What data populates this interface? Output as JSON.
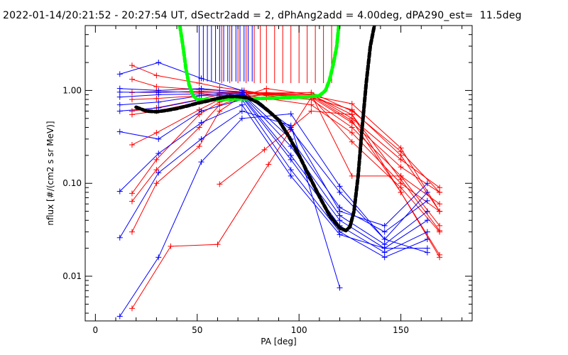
{
  "chart_data": {
    "type": "line",
    "title": "2022-01-14/20:21:52 - 20:27:54 UT, dSectr2add = 2, dPhAng2add = 4.00deg, dPA290_est=  11.5deg",
    "xlabel": "PA [deg]",
    "ylabel": "nflux [#/(cm2 s sr MeV)]",
    "xlim": [
      -5,
      185
    ],
    "ylim": [
      0.0033,
      5.0
    ],
    "yscale": "log",
    "xticks": [
      {
        "v": 0,
        "label": "0"
      },
      {
        "v": 50,
        "label": "50"
      },
      {
        "v": 100,
        "label": "100"
      },
      {
        "v": 150,
        "label": "150"
      }
    ],
    "yticks": [
      {
        "v": 0.01,
        "label": "0.01"
      },
      {
        "v": 0.1,
        "label": "0.10"
      },
      {
        "v": 1.0,
        "label": "1.00"
      }
    ],
    "colors": {
      "red": "#ff0000",
      "blue": "#0000ff",
      "green": "#00ff00",
      "black": "#000000"
    },
    "red_series": [
      [
        [
          18,
          1.86
        ],
        [
          30,
          1.45
        ],
        [
          51,
          1.2
        ],
        [
          61,
          1.08
        ],
        [
          73,
          1.0
        ],
        [
          84,
          0.91
        ],
        [
          106,
          0.88
        ],
        [
          126,
          0.72
        ],
        [
          150,
          0.24
        ],
        [
          169,
          0.05
        ]
      ],
      [
        [
          18,
          1.32
        ],
        [
          30,
          1.1
        ],
        [
          51,
          1.02
        ],
        [
          61,
          1.0
        ],
        [
          73,
          0.97
        ],
        [
          84,
          0.94
        ],
        [
          106,
          0.95
        ],
        [
          126,
          0.6
        ],
        [
          150,
          0.22
        ],
        [
          169,
          0.08
        ]
      ],
      [
        [
          18,
          0.95
        ],
        [
          30,
          0.98
        ],
        [
          51,
          0.95
        ],
        [
          61,
          0.96
        ],
        [
          73,
          0.95
        ],
        [
          84,
          0.93
        ],
        [
          106,
          0.91
        ],
        [
          126,
          0.5
        ],
        [
          150,
          0.18
        ],
        [
          169,
          0.09
        ]
      ],
      [
        [
          18,
          0.8
        ],
        [
          30,
          0.82
        ],
        [
          51,
          0.88
        ],
        [
          61,
          0.93
        ],
        [
          73,
          0.94
        ],
        [
          84,
          0.9
        ],
        [
          106,
          0.85
        ],
        [
          126,
          0.45
        ],
        [
          150,
          0.15
        ],
        [
          169,
          0.08
        ]
      ],
      [
        [
          18,
          0.6
        ],
        [
          30,
          0.65
        ],
        [
          51,
          0.8
        ],
        [
          61,
          0.9
        ],
        [
          73,
          0.95
        ],
        [
          84,
          0.88
        ],
        [
          106,
          0.8
        ],
        [
          126,
          0.4
        ],
        [
          150,
          0.12
        ],
        [
          169,
          0.06
        ]
      ],
      [
        [
          18,
          0.55
        ],
        [
          30,
          0.6
        ],
        [
          51,
          0.75
        ],
        [
          61,
          0.85
        ],
        [
          73,
          0.9
        ],
        [
          84,
          0.82
        ],
        [
          106,
          0.7
        ],
        [
          126,
          0.35
        ],
        [
          150,
          0.1
        ],
        [
          169,
          0.05
        ]
      ],
      [
        [
          18,
          0.26
        ],
        [
          30,
          0.35
        ],
        [
          51,
          0.62
        ],
        [
          61,
          0.8
        ],
        [
          73,
          0.88
        ],
        [
          84,
          1.05
        ],
        [
          106,
          0.9
        ],
        [
          126,
          0.12
        ],
        [
          150,
          0.12
        ],
        [
          169,
          0.035
        ]
      ],
      [
        [
          18,
          0.078
        ],
        [
          30,
          0.18
        ],
        [
          51,
          0.55
        ],
        [
          61,
          0.75
        ],
        [
          73,
          0.86
        ],
        [
          84,
          0.9
        ],
        [
          106,
          0.85
        ],
        [
          126,
          0.28
        ],
        [
          150,
          0.09
        ],
        [
          169,
          0.03
        ]
      ],
      [
        [
          18,
          0.064
        ],
        [
          30,
          0.14
        ],
        [
          51,
          0.4
        ],
        [
          61,
          0.7
        ],
        [
          73,
          0.85
        ],
        [
          84,
          0.92
        ],
        [
          106,
          0.88
        ],
        [
          126,
          0.47
        ],
        [
          150,
          0.08
        ],
        [
          169,
          0.017
        ]
      ],
      [
        [
          18,
          0.03
        ],
        [
          30,
          0.1
        ],
        [
          51,
          0.25
        ],
        [
          61,
          0.6
        ],
        [
          73,
          0.9
        ],
        [
          84,
          0.95
        ],
        [
          106,
          0.9
        ],
        [
          126,
          0.55
        ],
        [
          150,
          0.08
        ],
        [
          169,
          0.016
        ]
      ],
      [
        [
          18,
          0.0045
        ],
        [
          37,
          0.021
        ],
        [
          60,
          0.022
        ],
        [
          85,
          0.16
        ],
        [
          106,
          0.84
        ],
        [
          126,
          0.62
        ],
        [
          150,
          0.2
        ],
        [
          169,
          0.05
        ]
      ],
      [
        [
          61,
          0.098
        ],
        [
          83,
          0.23
        ],
        [
          106,
          0.6
        ],
        [
          126,
          0.55
        ],
        [
          150,
          0.11
        ],
        [
          169,
          0.031
        ]
      ]
    ],
    "blue_series": [
      [
        [
          12,
          1.5
        ],
        [
          31,
          2.0
        ],
        [
          52,
          1.35
        ],
        [
          72,
          1.0
        ],
        [
          96,
          0.4
        ],
        [
          120,
          0.05
        ],
        [
          142,
          0.035
        ],
        [
          163,
          0.1
        ]
      ],
      [
        [
          12,
          1.05
        ],
        [
          31,
          1.0
        ],
        [
          52,
          1.05
        ],
        [
          72,
          0.95
        ],
        [
          96,
          0.38
        ],
        [
          120,
          0.08
        ],
        [
          142,
          0.025
        ],
        [
          163,
          0.08
        ]
      ],
      [
        [
          12,
          0.96
        ],
        [
          31,
          0.95
        ],
        [
          52,
          0.98
        ],
        [
          72,
          0.92
        ],
        [
          96,
          0.3
        ],
        [
          120,
          0.055
        ],
        [
          142,
          0.03
        ],
        [
          163,
          0.065
        ]
      ],
      [
        [
          12,
          0.85
        ],
        [
          31,
          0.9
        ],
        [
          52,
          0.92
        ],
        [
          72,
          0.9
        ],
        [
          96,
          0.25
        ],
        [
          120,
          0.045
        ],
        [
          142,
          0.022
        ],
        [
          163,
          0.05
        ]
      ],
      [
        [
          12,
          0.7
        ],
        [
          31,
          0.75
        ],
        [
          52,
          0.88
        ],
        [
          72,
          0.88
        ],
        [
          96,
          0.2
        ],
        [
          120,
          0.04
        ],
        [
          142,
          0.02
        ],
        [
          163,
          0.04
        ]
      ],
      [
        [
          12,
          0.6
        ],
        [
          31,
          0.65
        ],
        [
          52,
          0.8
        ],
        [
          72,
          0.85
        ],
        [
          96,
          0.18
        ],
        [
          120,
          0.035
        ],
        [
          142,
          0.018
        ],
        [
          163,
          0.03
        ]
      ],
      [
        [
          12,
          0.36
        ],
        [
          31,
          0.3
        ],
        [
          52,
          0.6
        ],
        [
          72,
          0.8
        ],
        [
          96,
          0.14
        ],
        [
          120,
          0.03
        ],
        [
          142,
          0.016
        ],
        [
          163,
          0.025
        ]
      ],
      [
        [
          12,
          0.082
        ],
        [
          31,
          0.21
        ],
        [
          52,
          0.45
        ],
        [
          72,
          0.7
        ],
        [
          96,
          0.12
        ],
        [
          120,
          0.028
        ],
        [
          142,
          0.02
        ],
        [
          163,
          0.02
        ]
      ],
      [
        [
          12,
          0.026
        ],
        [
          31,
          0.13
        ],
        [
          52,
          0.3
        ],
        [
          72,
          0.6
        ],
        [
          96,
          0.42
        ],
        [
          120,
          0.0075
        ]
      ],
      [
        [
          12,
          0.0037
        ],
        [
          31,
          0.016
        ],
        [
          52,
          0.17
        ],
        [
          72,
          0.5
        ],
        [
          96,
          0.56
        ],
        [
          120,
          0.093
        ],
        [
          142,
          0.025
        ],
        [
          163,
          0.018
        ]
      ]
    ],
    "blue_spikes_x": [
      51,
      53,
      55,
      57,
      59,
      61,
      63,
      65,
      67,
      69,
      71,
      73,
      75,
      77
    ],
    "red_spikes_x": [
      62,
      66,
      70,
      74,
      78,
      81,
      84,
      88,
      92,
      96,
      100,
      104,
      108,
      112,
      116
    ],
    "green_curve": [
      [
        41.5,
        4.9
      ],
      [
        43,
        3.0
      ],
      [
        44.5,
        1.7
      ],
      [
        46,
        1.15
      ],
      [
        48,
        0.88
      ],
      [
        50,
        0.8
      ],
      [
        55,
        0.79
      ],
      [
        60,
        0.8
      ],
      [
        70,
        0.81
      ],
      [
        80,
        0.82
      ],
      [
        90,
        0.83
      ],
      [
        100,
        0.85
      ],
      [
        105,
        0.86
      ],
      [
        110,
        0.88
      ],
      [
        113,
        1.0
      ],
      [
        115,
        1.3
      ],
      [
        117,
        2.0
      ],
      [
        118.5,
        3.0
      ],
      [
        119.5,
        4.9
      ]
    ],
    "black_curve": [
      [
        20,
        0.66
      ],
      [
        25,
        0.6
      ],
      [
        30,
        0.59
      ],
      [
        35,
        0.61
      ],
      [
        40,
        0.64
      ],
      [
        45,
        0.68
      ],
      [
        50,
        0.73
      ],
      [
        55,
        0.77
      ],
      [
        60,
        0.82
      ],
      [
        65,
        0.86
      ],
      [
        70,
        0.86
      ],
      [
        75,
        0.83
      ],
      [
        80,
        0.74
      ],
      [
        85,
        0.6
      ],
      [
        90,
        0.48
      ],
      [
        95,
        0.32
      ],
      [
        100,
        0.2
      ],
      [
        105,
        0.12
      ],
      [
        110,
        0.072
      ],
      [
        115,
        0.045
      ],
      [
        120,
        0.033
      ],
      [
        123,
        0.031
      ],
      [
        125,
        0.034
      ],
      [
        127,
        0.05
      ],
      [
        129,
        0.12
      ],
      [
        131,
        0.4
      ],
      [
        133,
        1.2
      ],
      [
        135,
        3.0
      ],
      [
        137,
        5.0
      ]
    ]
  }
}
